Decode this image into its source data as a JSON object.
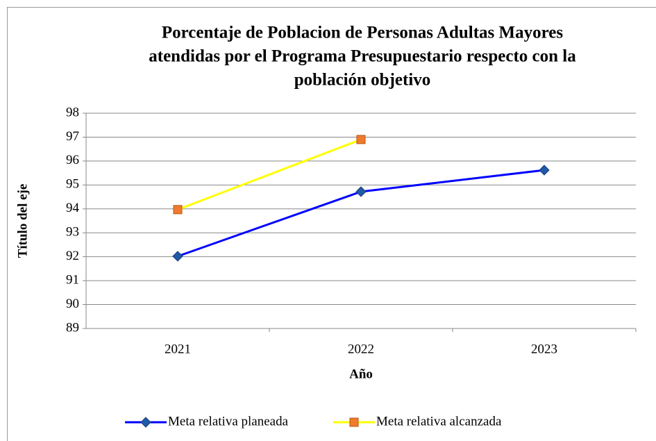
{
  "chart_data": {
    "type": "line",
    "title": [
      "Porcentaje de Poblacion de Personas Adultas Mayores",
      "atendidas por el Programa Presupuestario respecto con la",
      "población objetivo"
    ],
    "x_label": "Año",
    "y_label": "Título del eje",
    "categories": [
      "2021",
      "2022",
      "2023"
    ],
    "series": [
      {
        "name": "Meta relativa planeada",
        "color": "#0000ff",
        "marker": "diamond",
        "marker_color": "#1f5aa6",
        "values": [
          92.02,
          94.72,
          95.62
        ]
      },
      {
        "name": "Meta relativa alcanzada",
        "color": "#ffff00",
        "marker": "square",
        "marker_color": "#f07a2d",
        "values": [
          93.97,
          96.9,
          null
        ]
      }
    ],
    "ylim": [
      89,
      98
    ],
    "yticks": [
      89,
      90,
      91,
      92,
      93,
      94,
      95,
      96,
      97,
      98
    ],
    "grid": true,
    "legend": "bottom"
  }
}
